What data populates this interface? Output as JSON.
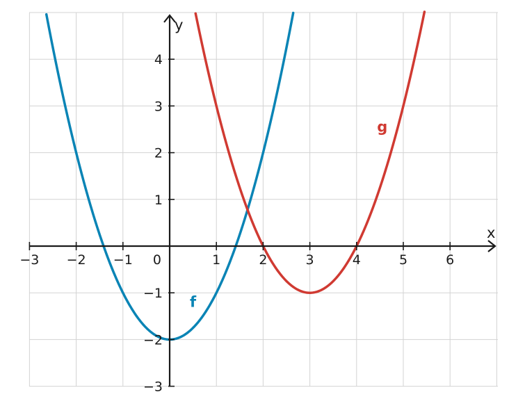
{
  "chart_data": {
    "type": "line",
    "xlabel": "x",
    "ylabel": "y",
    "xlim": [
      -3,
      7
    ],
    "ylim": [
      -3,
      5
    ],
    "x_ticks": [
      -3,
      -2,
      -1,
      0,
      1,
      2,
      3,
      4,
      5,
      6
    ],
    "y_ticks": [
      -3,
      -2,
      -1,
      1,
      2,
      3,
      4
    ],
    "x_tick_labels": [
      "−3",
      "−2",
      "−1",
      "0",
      "1",
      "2",
      "3",
      "4",
      "5",
      "6"
    ],
    "y_tick_labels": [
      "−3",
      "−2",
      "−1",
      "1",
      "2",
      "3",
      "4"
    ],
    "grid": true,
    "series": [
      {
        "name": "f",
        "formula": "x^2 - 2",
        "color": "#0a84b5",
        "points": [
          [
            -2.5,
            4.25
          ],
          [
            -2,
            2
          ],
          [
            -1.5,
            0.25
          ],
          [
            -1,
            -1
          ],
          [
            0,
            -2
          ],
          [
            1,
            -1
          ],
          [
            1.5,
            0.25
          ],
          [
            2,
            2
          ],
          [
            2.5,
            4.25
          ]
        ]
      },
      {
        "name": "g",
        "formula": "(x - 3)^2 - 1",
        "color": "#d03a32",
        "points": [
          [
            0.5,
            5.25
          ],
          [
            1,
            3
          ],
          [
            2,
            0
          ],
          [
            3,
            -1
          ],
          [
            4,
            0
          ],
          [
            5,
            3
          ],
          [
            5.5,
            5.25
          ]
        ]
      }
    ]
  }
}
